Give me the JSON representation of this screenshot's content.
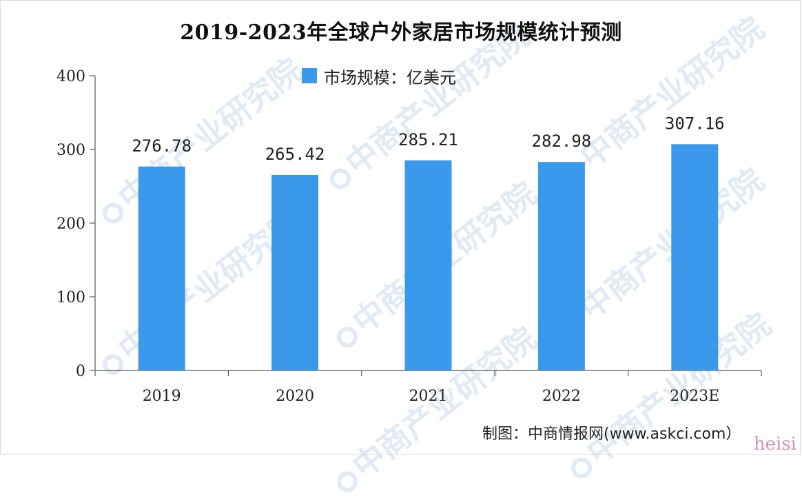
{
  "chart_data": {
    "type": "bar",
    "title": "2019-2023年全球户外家居市场规模统计预测",
    "categories": [
      "2019",
      "2020",
      "2021",
      "2022",
      "2023E"
    ],
    "series": [
      {
        "name": "市场规模：亿美元",
        "values": [
          276.78,
          265.42,
          285.21,
          282.98,
          307.16
        ]
      }
    ],
    "data_labels": [
      "276.78",
      "265.42",
      "285.21",
      "282.98",
      "307.16"
    ],
    "y_ticks": [
      "0",
      "100",
      "200",
      "300",
      "400"
    ],
    "ylim": [
      0,
      400
    ],
    "legend_position": "top-center",
    "grid": false,
    "bar_color": "#3a99ea"
  },
  "source": "制图：中商情报网(www.askci.com）",
  "watermark": "中商产业研究院",
  "corner_mark": "heisi"
}
